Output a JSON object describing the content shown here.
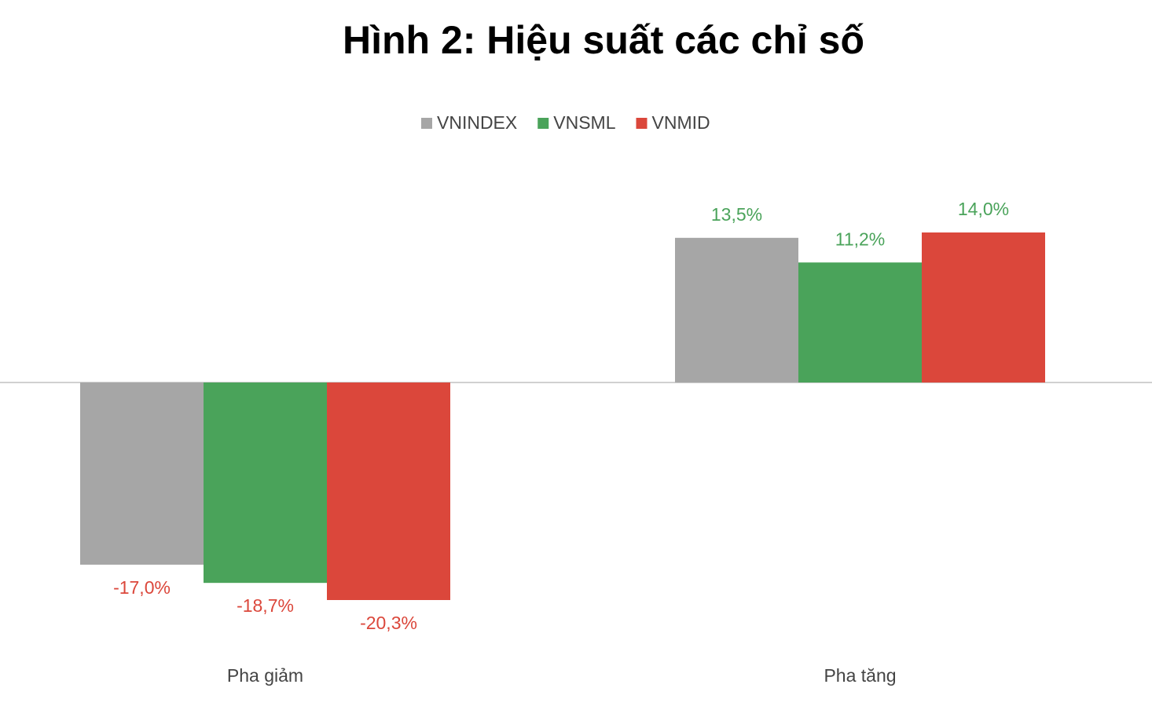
{
  "chart_data": {
    "type": "bar",
    "title": "Hình 2: Hiệu suất các chỉ số",
    "categories": [
      "Pha giảm",
      "Pha tăng"
    ],
    "series": [
      {
        "name": "VNINDEX",
        "color": "#a6a6a6",
        "values": [
          -17.0,
          13.5
        ],
        "value_labels": [
          "-17,0%",
          "13,5%"
        ]
      },
      {
        "name": "VNSML",
        "color": "#4aa35a",
        "values": [
          -18.7,
          11.2
        ],
        "value_labels": [
          "-18,7%",
          "11,2%"
        ]
      },
      {
        "name": "VNMID",
        "color": "#db473b",
        "values": [
          -20.3,
          14.0
        ],
        "value_labels": [
          "-20,3%",
          "14,0%"
        ]
      }
    ],
    "legend": "top"
  }
}
